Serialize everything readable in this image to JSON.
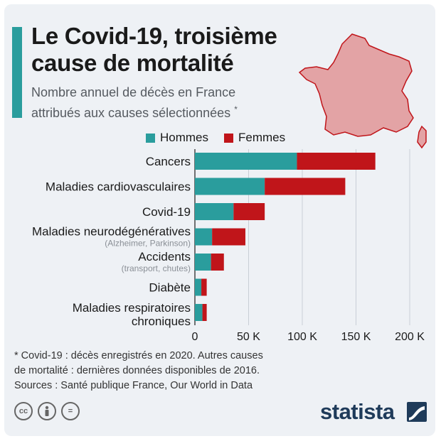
{
  "header": {
    "title_line1": "Le Covid-19, troisième",
    "title_line2": "cause de mortalité",
    "subtitle_line1": "Nombre annuel de décès en France",
    "subtitle_line2": "attribués aux causes sélectionnées",
    "subtitle_mark": "*"
  },
  "colors": {
    "hommes": "#2a9d9d",
    "femmes": "#c0151a",
    "map_fill": "#e3a3a5",
    "map_stroke": "#c0151a"
  },
  "chart_data": {
    "type": "bar",
    "orientation": "horizontal",
    "stacked": true,
    "categories": [
      {
        "label": "Cancers",
        "sublabel": ""
      },
      {
        "label": "Maladies cardiovasculaires",
        "sublabel": ""
      },
      {
        "label": "Covid-19",
        "sublabel": ""
      },
      {
        "label": "Maladies neurodégénératives",
        "sublabel": "(Alzheimer, Parkinson)"
      },
      {
        "label": "Accidents",
        "sublabel": "(transport, chutes)"
      },
      {
        "label": "Diabète",
        "sublabel": ""
      },
      {
        "label": "Maladies respiratoires chroniques",
        "label_lines": [
          "Maladies respiratoires",
          "chroniques"
        ],
        "sublabel": ""
      }
    ],
    "series": [
      {
        "name": "Hommes",
        "values": [
          95000,
          65000,
          36000,
          16000,
          15000,
          6000,
          7000
        ]
      },
      {
        "name": "Femmes",
        "values": [
          73000,
          75000,
          29000,
          31000,
          12000,
          5000,
          4000
        ]
      }
    ],
    "xlim": [
      0,
      200000
    ],
    "ticks": [
      0,
      50000,
      100000,
      150000,
      200000
    ],
    "tick_labels": [
      "0",
      "50 K",
      "100 K",
      "150 K",
      "200 K"
    ],
    "grid": true
  },
  "footer": {
    "footnote_line1": "* Covid-19 : décès enregistrés en 2020. Autres causes",
    "footnote_line2": "de mortalité : dernières données disponibles de 2016.",
    "sources": "Sources : Santé publique France, Our World in Data",
    "brand": "statista",
    "license_icons": [
      "cc-icon",
      "by-icon",
      "nd-icon"
    ],
    "license_text": [
      "cc",
      "",
      "="
    ]
  }
}
